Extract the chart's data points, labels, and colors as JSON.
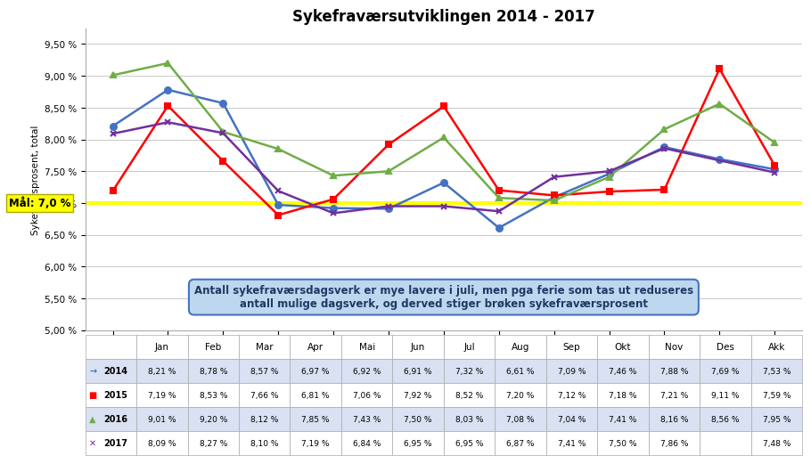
{
  "title": "Sykefraværsutviklingen 2014 - 2017",
  "ylabel": "Sykefrærsprosent, total",
  "categories": [
    "Jan",
    "Feb",
    "Mar",
    "Apr",
    "Mai",
    "Jun",
    "Jul",
    "Aug",
    "Sep",
    "Okt",
    "Nov",
    "Des",
    "Akk"
  ],
  "series": {
    "2014": {
      "values": [
        8.21,
        8.78,
        8.57,
        6.97,
        6.92,
        6.91,
        7.32,
        6.61,
        7.09,
        7.46,
        7.88,
        7.69,
        7.53
      ],
      "color": "#4472C4",
      "marker": "o",
      "linewidth": 1.8
    },
    "2015": {
      "values": [
        7.19,
        8.53,
        7.66,
        6.81,
        7.06,
        7.92,
        8.52,
        7.2,
        7.12,
        7.18,
        7.21,
        9.11,
        7.59
      ],
      "color": "#FF0000",
      "marker": "s",
      "linewidth": 1.8
    },
    "2016": {
      "values": [
        9.01,
        9.2,
        8.12,
        7.85,
        7.43,
        7.5,
        8.03,
        7.08,
        7.04,
        7.41,
        8.16,
        8.56,
        7.95
      ],
      "color": "#70AD47",
      "marker": "^",
      "linewidth": 1.8
    },
    "2017": {
      "values": [
        8.09,
        8.27,
        8.1,
        7.19,
        6.84,
        6.95,
        6.95,
        6.87,
        7.41,
        7.5,
        7.86,
        null,
        7.48
      ],
      "color": "#7030A0",
      "marker": "x",
      "linewidth": 1.8
    }
  },
  "goal_value": 7.0,
  "goal_label": "Mål: 7,0 %",
  "goal_line_color": "#FFFF00",
  "goal_box_color": "#FFFF00",
  "goal_text_color": "#000000",
  "annotation_text": "Antall sykefraværsdagsverk er mye lavere i juli, men pga ferie som tas ut reduseres\nantall mulige dagsverk, og derved stiger brøken sykefraværsprosent",
  "annotation_bg": "#BDD7EE",
  "annotation_border": "#4472C4",
  "annotation_text_color": "#1F3864",
  "ylim_min": 5.0,
  "ylim_max": 9.75,
  "yticks": [
    5.0,
    5.5,
    6.0,
    6.5,
    7.0,
    7.5,
    8.0,
    8.5,
    9.0,
    9.5
  ],
  "ytick_labels": [
    "5,00 %",
    "5,50 %",
    "6,00 %",
    "6,50 %",
    "7,00 %",
    "7,50 %",
    "8,00 %",
    "8,50 %",
    "9,00 %",
    "9,50 %"
  ],
  "bg_color": "#FFFFFF",
  "grid_color": "#C0C0C0",
  "table_header_bg": "#FFFFFF",
  "table_row_alt_bg": "#D9E1F2",
  "table_row_bg": "#FFFFFF"
}
